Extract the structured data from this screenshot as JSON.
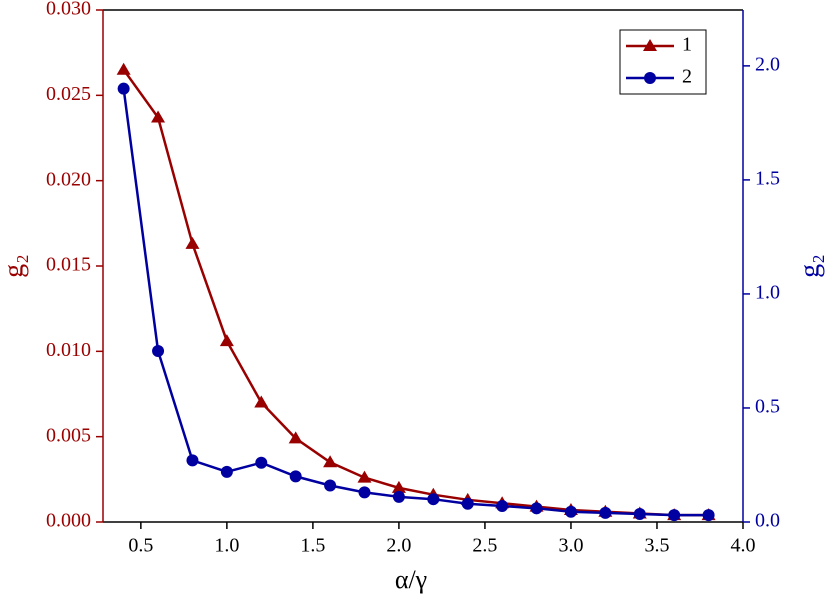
{
  "chart_data": {
    "type": "line",
    "x_label": "α/γ",
    "y_label": "g₂",
    "y2_label": "g₂",
    "x": [
      0.4,
      0.6,
      0.8,
      1.0,
      1.2,
      1.4,
      1.6,
      1.8,
      2.0,
      2.2,
      2.4,
      2.6,
      2.8,
      3.0,
      3.2,
      3.4,
      3.6,
      3.8
    ],
    "series": [
      {
        "name": "1",
        "color": "#990000",
        "marker": "triangle",
        "values": [
          0.0265,
          0.0237,
          0.0163,
          0.0106,
          0.007,
          0.0049,
          0.0035,
          0.0026,
          0.002,
          0.0016,
          0.0013,
          0.0011,
          0.0009,
          0.0007,
          0.0006,
          0.0005,
          0.0004,
          0.0004
        ]
      },
      {
        "name": "2",
        "color": "#0000a0",
        "marker": "circle",
        "axis": "y2",
        "values": [
          1.9,
          0.75,
          0.27,
          0.22,
          0.26,
          0.2,
          0.16,
          0.13,
          0.11,
          0.1,
          0.08,
          0.07,
          0.06,
          0.045,
          0.04,
          0.035,
          0.03,
          0.03
        ]
      }
    ],
    "xlim": [
      0.28,
      4.0
    ],
    "xticks": [
      {
        "value": 0.5,
        "label": "0.5"
      },
      {
        "value": 1.0,
        "label": "1.0"
      },
      {
        "value": 1.5,
        "label": "1.5"
      },
      {
        "value": 2.0,
        "label": "2.0"
      },
      {
        "value": 2.5,
        "label": "2.5"
      },
      {
        "value": 3.0,
        "label": "3.0"
      },
      {
        "value": 3.5,
        "label": "3.5"
      },
      {
        "value": 4.0,
        "label": "4.0"
      }
    ],
    "ylim": [
      0,
      0.03
    ],
    "yticks": [
      {
        "value": 0,
        "label": "0.000"
      },
      {
        "value": 0.005,
        "label": "0.005"
      },
      {
        "value": 0.01,
        "label": "0.010"
      },
      {
        "value": 0.015,
        "label": "0.015"
      },
      {
        "value": 0.02,
        "label": "0.020"
      },
      {
        "value": 0.025,
        "label": "0.025"
      },
      {
        "value": 0.03,
        "label": "0.030"
      }
    ],
    "y2lim": [
      0,
      2.245
    ],
    "y2ticks": [
      {
        "value": 0,
        "label": "0.0"
      },
      {
        "value": 0.5,
        "label": "0.5"
      },
      {
        "value": 1.0,
        "label": "1.0"
      },
      {
        "value": 1.5,
        "label": "1.5"
      },
      {
        "value": 2.0,
        "label": "2.0"
      }
    ],
    "legend": "upper right"
  }
}
